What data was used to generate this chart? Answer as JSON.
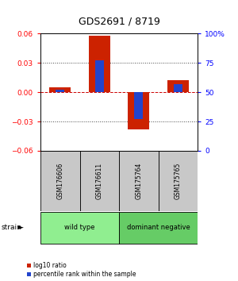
{
  "title": "GDS2691 / 8719",
  "samples": [
    "GSM176606",
    "GSM176611",
    "GSM175764",
    "GSM175765"
  ],
  "log10_ratio": [
    0.005,
    0.058,
    -0.038,
    0.012
  ],
  "percentile_rank": [
    0.52,
    0.77,
    0.27,
    0.57
  ],
  "groups": [
    {
      "label": "wild type",
      "samples": [
        0,
        1
      ],
      "color": "#90EE90"
    },
    {
      "label": "dominant negative",
      "samples": [
        2,
        3
      ],
      "color": "#66CC66"
    }
  ],
  "ylim": [
    -0.06,
    0.06
  ],
  "yticks_left": [
    -0.06,
    -0.03,
    0,
    0.03,
    0.06
  ],
  "yticks_right_vals": [
    0,
    25,
    50,
    75,
    100
  ],
  "yticks_right_labels": [
    "0",
    "25",
    "50",
    "75",
    "100%"
  ],
  "bar_color_red": "#CC2200",
  "bar_color_blue": "#2244CC",
  "hline_color": "#CC0000",
  "dotted_color": "#444444",
  "background_color": "#ffffff",
  "sample_bg": "#C8C8C8",
  "bar_width": 0.55,
  "blue_bar_width": 0.22
}
